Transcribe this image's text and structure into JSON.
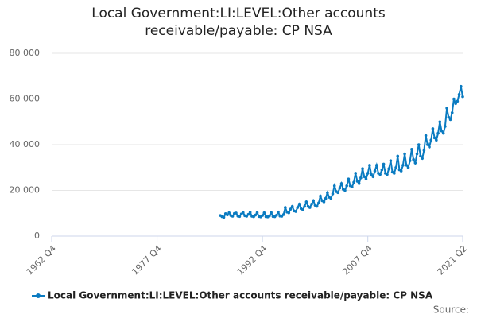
{
  "chart_data": {
    "type": "line",
    "title": "Local Government:LI:LEVEL:Other accounts receivable/payable: CP NSA",
    "source_label": "Source:",
    "categories": [
      "1962 Q4",
      null,
      null,
      null,
      null,
      null,
      null,
      null,
      null,
      null,
      null,
      null,
      null,
      null,
      null,
      null,
      null,
      null,
      null,
      null,
      null,
      null,
      null,
      null,
      null,
      null,
      null,
      null,
      null,
      null,
      null,
      null,
      null,
      null,
      null,
      null,
      null,
      null,
      null,
      null,
      null,
      null,
      null,
      null,
      null,
      null,
      null,
      null,
      null,
      null,
      null,
      null,
      null,
      null,
      null,
      null,
      null,
      null,
      null,
      null,
      "1977 Q4",
      null,
      null,
      null,
      null,
      null,
      null,
      null,
      null,
      null,
      null,
      null,
      null,
      null,
      null,
      null,
      null,
      null,
      null,
      null,
      null,
      null,
      null,
      null,
      null,
      null,
      null,
      null,
      null,
      null,
      null,
      null,
      null,
      null,
      null,
      null,
      null,
      null,
      null,
      null,
      null,
      null,
      null,
      null,
      null,
      null,
      null,
      null,
      null,
      null,
      null,
      null,
      null,
      null,
      null,
      null,
      null,
      null,
      null,
      null,
      "1992 Q4",
      null,
      null,
      null,
      null,
      null,
      null,
      null,
      null,
      null,
      null,
      null,
      null,
      null,
      null,
      null,
      null,
      null,
      null,
      null,
      null,
      null,
      null,
      null,
      null,
      null,
      null,
      null,
      null,
      null,
      null,
      null,
      null,
      null,
      null,
      null,
      null,
      null,
      null,
      null,
      null,
      null,
      null,
      null,
      null,
      null,
      null,
      null,
      null,
      null,
      null,
      null,
      null,
      null,
      null,
      null,
      null,
      null,
      null,
      null,
      "2007 Q4",
      null,
      null,
      null,
      null,
      null,
      null,
      null,
      null,
      null,
      null,
      null,
      null,
      null,
      null,
      null,
      null,
      null,
      null,
      null,
      null,
      null,
      null,
      null,
      null,
      null,
      null,
      null,
      null,
      null,
      null,
      null,
      null,
      null,
      null,
      null,
      null,
      null,
      null,
      null,
      null,
      null,
      null,
      null,
      null,
      null,
      null,
      null,
      null,
      null,
      null,
      null,
      null,
      null,
      "2021 Q2"
    ],
    "series": [
      {
        "name": "Local Government:LI:LEVEL:Other accounts receivable/payable: CP NSA",
        "color": "#0a7bc1",
        "values": [
          null,
          null,
          null,
          null,
          null,
          null,
          null,
          null,
          null,
          null,
          null,
          null,
          null,
          null,
          null,
          null,
          null,
          null,
          null,
          null,
          null,
          null,
          null,
          null,
          null,
          null,
          null,
          null,
          null,
          null,
          null,
          null,
          null,
          null,
          null,
          null,
          null,
          null,
          null,
          null,
          null,
          null,
          null,
          null,
          null,
          null,
          null,
          null,
          null,
          null,
          null,
          null,
          null,
          null,
          null,
          null,
          null,
          null,
          null,
          null,
          null,
          null,
          null,
          null,
          null,
          null,
          null,
          null,
          null,
          null,
          null,
          null,
          null,
          null,
          null,
          null,
          null,
          null,
          null,
          null,
          null,
          null,
          null,
          null,
          null,
          null,
          null,
          null,
          null,
          null,
          null,
          null,
          null,
          null,
          null,
          null,
          9000,
          8500,
          8200,
          9800,
          9300,
          10200,
          9000,
          8700,
          9900,
          10100,
          8800,
          8600,
          9700,
          10300,
          8900,
          8700,
          9500,
          10400,
          8700,
          8500,
          9200,
          10300,
          8600,
          8400,
          9000,
          10200,
          8500,
          8400,
          8900,
          10300,
          8600,
          8500,
          9100,
          10500,
          8800,
          8700,
          9400,
          12500,
          10500,
          10200,
          11800,
          13000,
          11000,
          10800,
          12500,
          14000,
          12000,
          11500,
          13000,
          15000,
          13000,
          12500,
          14000,
          15500,
          13500,
          13000,
          14500,
          17500,
          15500,
          15000,
          16500,
          19000,
          17000,
          16500,
          18500,
          22000,
          19500,
          19000,
          21000,
          23000,
          20500,
          20000,
          22000,
          25000,
          22000,
          21500,
          23500,
          27500,
          24000,
          23000,
          25500,
          29500,
          26000,
          25000,
          27500,
          31000,
          27000,
          26000,
          28500,
          31000,
          27500,
          27000,
          29000,
          31500,
          27500,
          27000,
          29500,
          33000,
          28000,
          27500,
          30000,
          35000,
          29000,
          28500,
          31000,
          36000,
          31000,
          30000,
          33000,
          38000,
          33500,
          32000,
          36000,
          40000,
          35000,
          34000,
          37500,
          44000,
          40000,
          39000,
          42000,
          47000,
          43000,
          42000,
          45000,
          50000,
          46000,
          45000,
          48000,
          56000,
          52000,
          51000,
          54000,
          60000,
          58000,
          59000,
          62000,
          65500,
          61000
        ]
      }
    ],
    "ylim": [
      0,
      80000
    ],
    "yticks": [
      0,
      {
        "value": 20000,
        "label": "20 000"
      },
      {
        "value": 40000,
        "label": "40 000"
      },
      {
        "value": 60000,
        "label": "60 000"
      },
      {
        "value": 80000,
        "label": "80 000"
      }
    ],
    "grid": true
  }
}
